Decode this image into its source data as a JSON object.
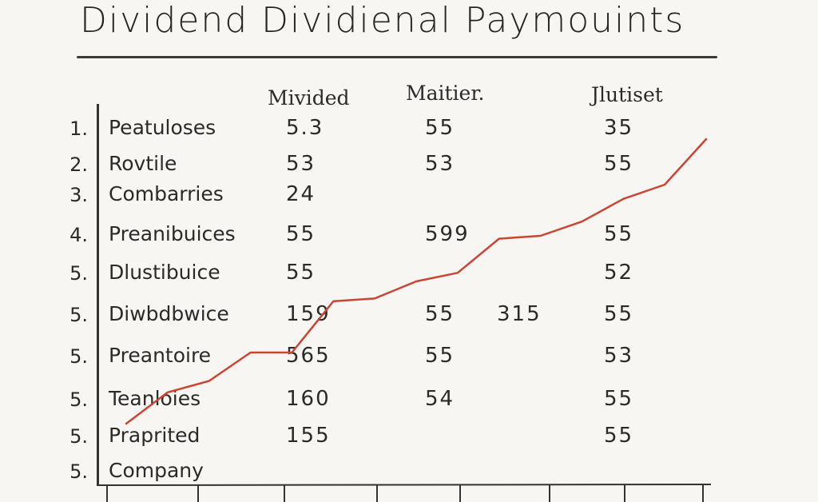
{
  "title": "Dividend Dividienal Paymouints",
  "columns": [
    "Mivided",
    "Maitier.",
    "Jlutiset"
  ],
  "rows": [
    {
      "num": "1.",
      "label": "Peatuloses",
      "c1": "5.3",
      "c2": "55",
      "c3": "35"
    },
    {
      "num": "2.",
      "label": "Rovtile",
      "c1": "53",
      "c2": "53",
      "c3": "55"
    },
    {
      "num": "3.",
      "label": "Combarries",
      "c1": "24",
      "c2": "",
      "c3": ""
    },
    {
      "num": "4.",
      "label": "Preanibuices",
      "c1": "55",
      "c2": "599",
      "c3": "55"
    },
    {
      "num": "5.",
      "label": "Dlustibuice",
      "c1": "55",
      "c2": "",
      "c3": "52"
    },
    {
      "num": "5.",
      "label": "Diwbdbwice",
      "c1": "159",
      "c2": "55",
      "c3": "55"
    },
    {
      "num": "5.",
      "label": "Preantoire",
      "c1": "565",
      "c2": "55",
      "c3": "53"
    },
    {
      "num": "5.",
      "label": "Teanloies",
      "c1": "160",
      "c2": "54",
      "c3": "55"
    },
    {
      "num": "5.",
      "label": "Praprited",
      "c1": "155",
      "c2": "",
      "c3": "55"
    },
    {
      "num": "5.",
      "label": "Company",
      "c1": "",
      "c2": "",
      "c3": ""
    }
  ],
  "extra_value": "315",
  "chart_data": {
    "type": "line",
    "series": [
      {
        "color": "#cc4433",
        "values": [
          0.0,
          0.11,
          0.15,
          0.25,
          0.25,
          0.43,
          0.44,
          0.5,
          0.53,
          0.65,
          0.66,
          0.71,
          0.79,
          0.84,
          1.0
        ]
      }
    ]
  }
}
